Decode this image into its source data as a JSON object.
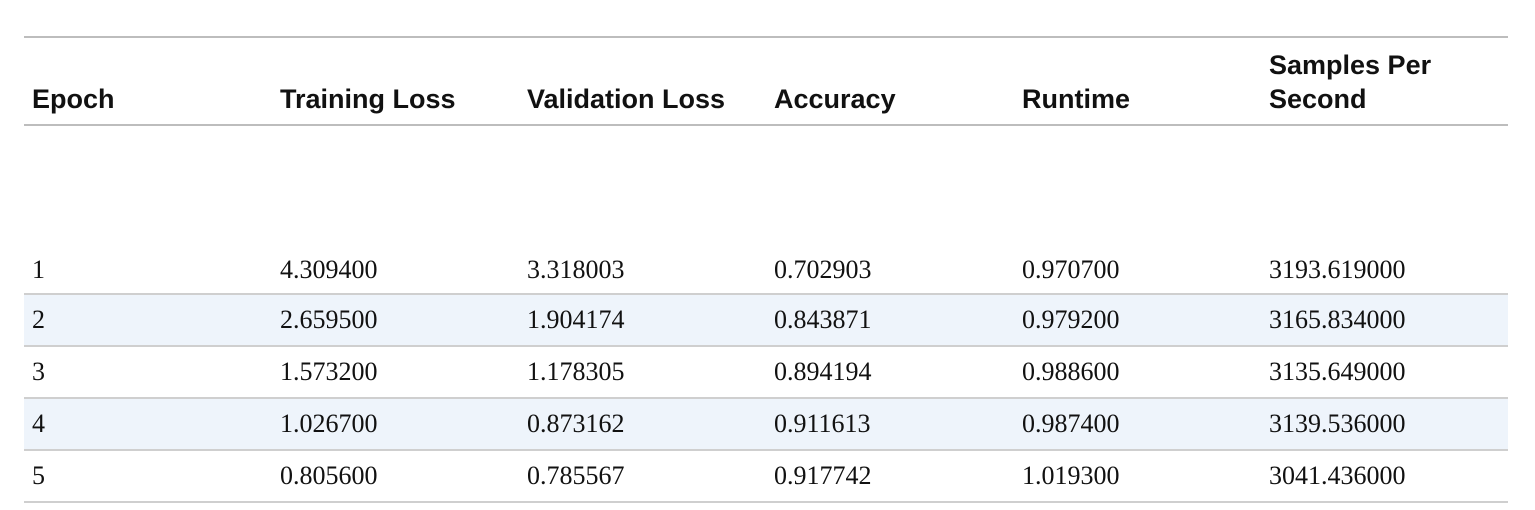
{
  "table": {
    "headers": [
      "Epoch",
      "Training Loss",
      "Validation Loss",
      "Accuracy",
      "Runtime",
      "Samples Per Second"
    ],
    "rows": [
      [
        "1",
        "4.309400",
        "3.318003",
        "0.702903",
        "0.970700",
        "3193.619000"
      ],
      [
        "2",
        "2.659500",
        "1.904174",
        "0.843871",
        "0.979200",
        "3165.834000"
      ],
      [
        "3",
        "1.573200",
        "1.178305",
        "0.894194",
        "0.988600",
        "3135.649000"
      ],
      [
        "4",
        "1.026700",
        "0.873162",
        "0.911613",
        "0.987400",
        "3139.536000"
      ],
      [
        "5",
        "0.805600",
        "0.785567",
        "0.917742",
        "1.019300",
        "3041.436000"
      ]
    ]
  },
  "colors": {
    "alt_row_background": "#eef4fb",
    "border": "#bdbdbd"
  }
}
